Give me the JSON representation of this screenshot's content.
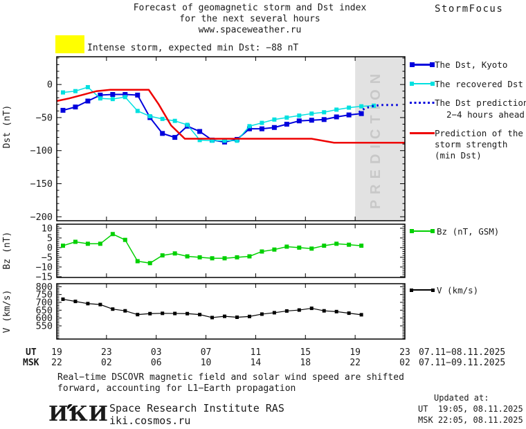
{
  "title": {
    "line1": "Forecast of geomagnetic storm and Dst index",
    "line2": "for the next several hours",
    "line3": "www.spaceweather.ru",
    "brand": "StormFocus"
  },
  "alert": {
    "label": "Intense storm, expected min Dst: −88 nT",
    "swatch_color": "#ffff00"
  },
  "prediction_band": {
    "label": "PREDICTION",
    "band_color": "#e2e2e2",
    "text_color": "#c8c8c8"
  },
  "legend": {
    "dst_kyoto": "The Dst, Kyoto",
    "recovered": "The recovered Dst",
    "prediction_line1": "The Dst prediction",
    "prediction_line2": "2−4 hours ahead",
    "storm_line1": "Prediction of the",
    "storm_line2": "storm strength",
    "storm_line3": "(min Dst)",
    "bz": "Bz (nT, GSM)",
    "v": "V (km/s)"
  },
  "colors": {
    "kyoto": "#0000dd",
    "recovered": "#00e0e0",
    "storm": "#ee0000",
    "bz": "#00d000",
    "v": "#000000",
    "axis": "#000000",
    "text": "#1a1a1a"
  },
  "xaxis": {
    "ut_label": "UT",
    "msk_label": "MSK",
    "ut_ticks": [
      "19",
      "23",
      "03",
      "07",
      "11",
      "15",
      "19",
      "23"
    ],
    "msk_ticks": [
      "22",
      "02",
      "06",
      "10",
      "14",
      "18",
      "22",
      "02"
    ],
    "ut_dates": "07.11−08.11.2025",
    "msk_dates": "07.11−09.11.2025"
  },
  "footnote": {
    "line1": "Real−time DSCOVR magnetic field and solar wind speed are shifted",
    "line2": "forward, accounting for L1−Earth propagation"
  },
  "footer": {
    "logo": "ИКИ",
    "org_line1": "Space Research Institute RAS",
    "org_line2": "iki.cosmos.ru",
    "updated_label": "Updated at:",
    "updated_ut": "UT  19:05, 08.11.2025",
    "updated_msk": "MSK 22:05, 08.11.2025"
  },
  "chart_data": [
    {
      "id": "dst",
      "type": "line",
      "ylabel": "Dst (nT)",
      "x_hours_range": [
        0,
        28
      ],
      "x_major_step_hours": 4,
      "ylim": [
        -206,
        42
      ],
      "yticks": [
        0,
        -50,
        -100,
        -150,
        -200
      ],
      "y_minor_step": 10,
      "prediction_band_t": [
        24,
        28
      ],
      "series": [
        {
          "name": "The Dst, Kyoto",
          "color": "#0000dd",
          "marker": 7,
          "lw": 2,
          "t_start": 0.5,
          "t_step": 1,
          "values": [
            -39,
            -34,
            -25,
            -16,
            -15,
            -15,
            -16,
            -50,
            -74,
            -80,
            -63,
            -71,
            -84,
            -87,
            -83,
            -67,
            -67,
            -65,
            -60,
            -55,
            -54,
            -53,
            -49,
            -46,
            -44
          ]
        },
        {
          "name": "The recovered Dst",
          "color": "#00e0e0",
          "marker": 6,
          "lw": 1.5,
          "t_start": 0.5,
          "t_step": 1,
          "values": [
            -12,
            -10,
            -4,
            -21,
            -22,
            -19,
            -40,
            -48,
            -52,
            -55,
            -61,
            -84,
            -85,
            -85,
            -85,
            -63,
            -58,
            -53,
            -50,
            -47,
            -44,
            -42,
            -38,
            -35,
            -33,
            -32
          ]
        },
        {
          "name": "The Dst prediction 2−4 hours ahead",
          "color": "#0000dd",
          "style": "dotted",
          "lw": 3,
          "points": [
            [
              24.3,
              -42
            ],
            [
              24.8,
              -36
            ],
            [
              25.3,
              -33
            ],
            [
              26,
              -31
            ],
            [
              27.5,
              -31
            ]
          ]
        },
        {
          "name": "Prediction of the storm strength (min Dst)",
          "color": "#ee0000",
          "style": "solid",
          "lw": 2.5,
          "points": [
            [
              0,
              -25
            ],
            [
              1,
              -21
            ],
            [
              2,
              -16
            ],
            [
              3.2,
              -10
            ],
            [
              4.3,
              -8
            ],
            [
              7.4,
              -8
            ],
            [
              8.2,
              -30
            ],
            [
              9.2,
              -62
            ],
            [
              10.3,
              -82
            ],
            [
              20.5,
              -82
            ],
            [
              22.3,
              -88
            ],
            [
              28,
              -88
            ]
          ]
        }
      ]
    },
    {
      "id": "bz",
      "type": "line",
      "ylabel": "Bz (nT)",
      "x_hours_range": [
        0,
        28
      ],
      "x_major_step_hours": 4,
      "ylim": [
        -15.4,
        12.1
      ],
      "yticks": [
        10,
        5,
        0,
        -5,
        -10,
        -15
      ],
      "y_minor_step": 1,
      "series": [
        {
          "name": "Bz (nT, GSM)",
          "color": "#00d000",
          "marker": 6,
          "lw": 1.5,
          "t_start": 0.5,
          "t_step": 1,
          "values": [
            1,
            3,
            2,
            2,
            7,
            4,
            -7,
            -8,
            -4,
            -3,
            -4.5,
            -5,
            -5.5,
            -5.5,
            -5,
            -4.5,
            -2,
            -1,
            0.5,
            0,
            -0.5,
            1,
            2,
            1.5,
            1
          ]
        }
      ]
    },
    {
      "id": "v",
      "type": "line",
      "ylabel": "V (km/s)",
      "x_hours_range": [
        0,
        28
      ],
      "x_major_step_hours": 4,
      "ylim": [
        466,
        819
      ],
      "yticks": [
        800,
        750,
        700,
        650,
        600,
        550
      ],
      "y_minor_step": 10,
      "series": [
        {
          "name": "V (km/s)",
          "color": "#000000",
          "marker": 5,
          "lw": 1.2,
          "t_start": 0.5,
          "t_step": 1,
          "values": [
            720,
            706,
            692,
            686,
            657,
            646,
            622,
            628,
            630,
            629,
            628,
            622,
            603,
            611,
            605,
            610,
            625,
            634,
            645,
            651,
            662,
            646,
            641,
            631,
            621
          ]
        }
      ]
    }
  ]
}
